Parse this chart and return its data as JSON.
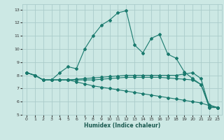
{
  "xlabel": "Humidex (Indice chaleur)",
  "background_color": "#cce8e4",
  "grid_color": "#aaccca",
  "line_color": "#1a7a6e",
  "xlim": [
    -0.5,
    23.5
  ],
  "ylim": [
    5,
    13.4
  ],
  "xticks": [
    0,
    1,
    2,
    3,
    4,
    5,
    6,
    7,
    8,
    9,
    10,
    11,
    12,
    13,
    14,
    15,
    16,
    17,
    18,
    19,
    20,
    21,
    22,
    23
  ],
  "yticks": [
    5,
    6,
    7,
    8,
    9,
    10,
    11,
    12,
    13
  ],
  "line1_x": [
    0,
    1,
    2,
    3,
    4,
    5,
    6,
    7,
    8,
    9,
    10,
    11,
    12,
    13,
    14,
    15,
    16,
    17,
    18,
    19,
    20,
    21,
    22,
    23
  ],
  "line1_y": [
    8.2,
    8.0,
    7.65,
    7.65,
    8.2,
    8.65,
    8.5,
    10.0,
    11.0,
    11.8,
    12.2,
    12.75,
    12.9,
    10.3,
    9.7,
    10.8,
    11.1,
    9.6,
    9.3,
    8.25,
    7.75,
    7.3,
    5.55,
    5.55
  ],
  "line2_x": [
    0,
    1,
    2,
    3,
    4,
    5,
    6,
    7,
    8,
    9,
    10,
    11,
    12,
    13,
    14,
    15,
    16,
    17,
    18,
    19,
    20,
    21,
    22,
    23
  ],
  "line2_y": [
    8.2,
    8.0,
    7.65,
    7.65,
    7.65,
    7.65,
    7.7,
    7.75,
    7.8,
    7.85,
    7.9,
    7.95,
    8.0,
    8.0,
    8.0,
    8.0,
    8.0,
    8.0,
    8.0,
    8.1,
    8.2,
    7.75,
    5.6,
    5.55
  ],
  "line3_x": [
    0,
    1,
    2,
    3,
    4,
    5,
    6,
    7,
    8,
    9,
    10,
    11,
    12,
    13,
    14,
    15,
    16,
    17,
    18,
    19,
    20,
    21,
    22,
    23
  ],
  "line3_y": [
    8.2,
    8.0,
    7.65,
    7.65,
    7.65,
    7.65,
    7.65,
    7.65,
    7.65,
    7.7,
    7.75,
    7.8,
    7.85,
    7.85,
    7.85,
    7.85,
    7.85,
    7.8,
    7.75,
    7.7,
    7.65,
    7.3,
    5.75,
    5.55
  ],
  "line4_x": [
    0,
    1,
    2,
    3,
    4,
    5,
    6,
    7,
    8,
    9,
    10,
    11,
    12,
    13,
    14,
    15,
    16,
    17,
    18,
    19,
    20,
    21,
    22,
    23
  ],
  "line4_y": [
    8.2,
    8.0,
    7.65,
    7.65,
    7.65,
    7.65,
    7.5,
    7.35,
    7.2,
    7.1,
    7.0,
    6.9,
    6.8,
    6.7,
    6.6,
    6.5,
    6.4,
    6.3,
    6.2,
    6.1,
    6.0,
    5.9,
    5.7,
    5.55
  ]
}
